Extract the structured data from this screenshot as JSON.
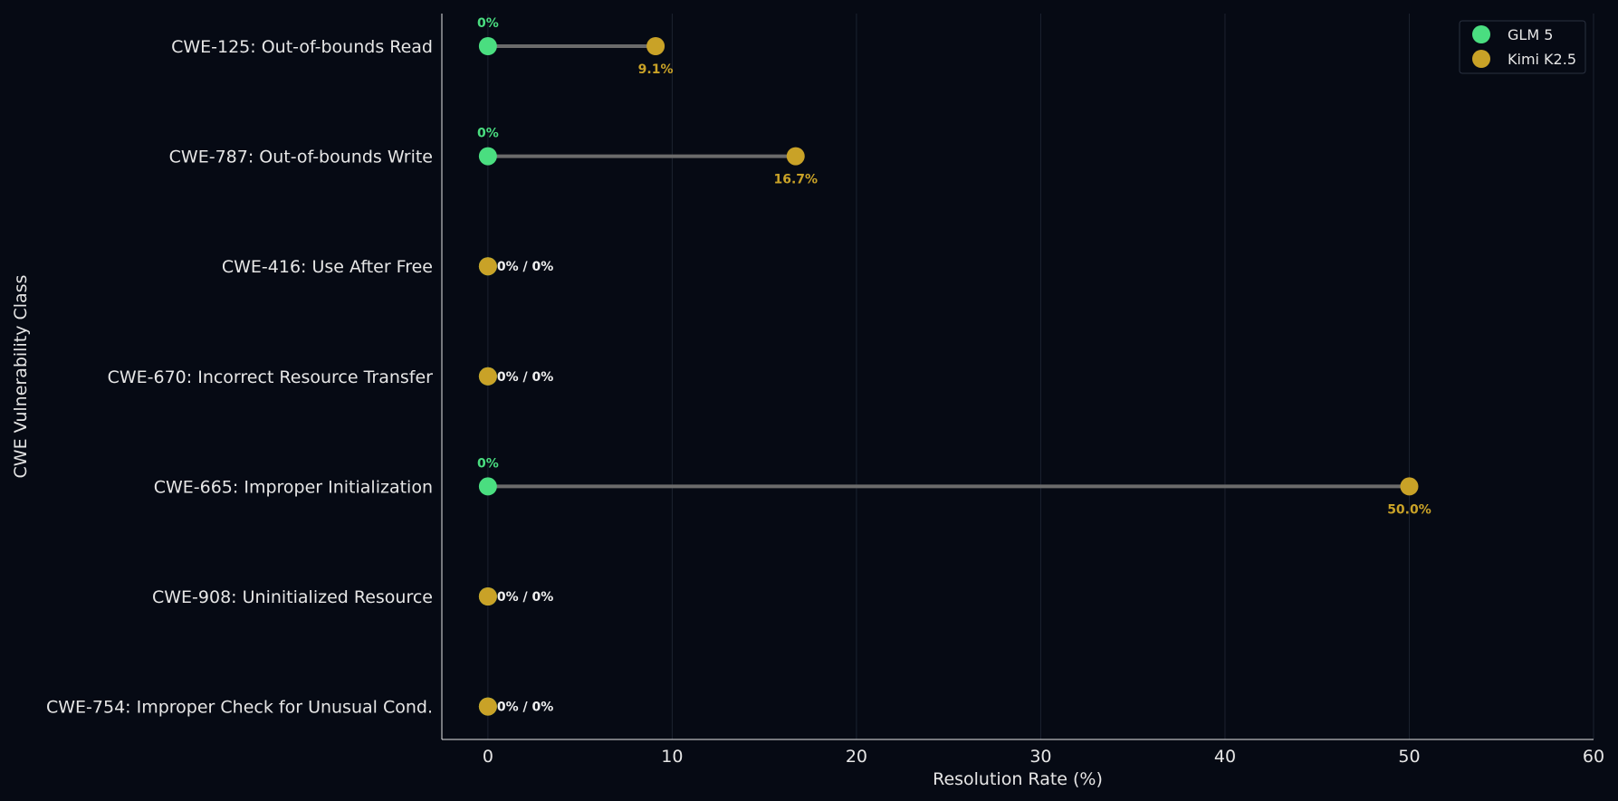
{
  "chart_data": {
    "type": "dumbbell",
    "title": "",
    "xlabel": "Resolution Rate (%)",
    "ylabel": "CWE Vulnerability Class",
    "xlim": [
      -2.5,
      60
    ],
    "xticks": [
      0,
      10,
      20,
      30,
      40,
      50,
      60
    ],
    "grid": "vertical",
    "legend_position": "top-right",
    "categories": [
      "CWE-125: Out-of-bounds Read",
      "CWE-787: Out-of-bounds Write",
      "CWE-416: Use After Free",
      "CWE-670: Incorrect Resource Transfer",
      "CWE-665: Improper Initialization",
      "CWE-908: Uninitialized Resource",
      "CWE-754: Improper Check for Unusual Cond."
    ],
    "series": [
      {
        "name": "GLM 5",
        "color": "#4ade80",
        "values": [
          0,
          0,
          0,
          0,
          0,
          0,
          0
        ],
        "labels": [
          "0%",
          "0%",
          "",
          "",
          "0%",
          "",
          ""
        ]
      },
      {
        "name": "Kimi K2.5",
        "color": "#c9a227",
        "values": [
          9.1,
          16.7,
          0,
          0,
          50.0,
          0,
          0
        ],
        "labels": [
          "9.1%",
          "16.7%",
          "",
          "",
          "50.0%",
          "",
          ""
        ]
      }
    ],
    "tie_labels": [
      "",
      "",
      "0% / 0%",
      "0% / 0%",
      "",
      "0% / 0%",
      "0% / 0%"
    ],
    "colors": {
      "background": "#060a14",
      "connector": "#6b6b6b",
      "grid": "#1c2230",
      "axis": "#e6e6e6",
      "tie_label": "#f0f0f0"
    }
  }
}
